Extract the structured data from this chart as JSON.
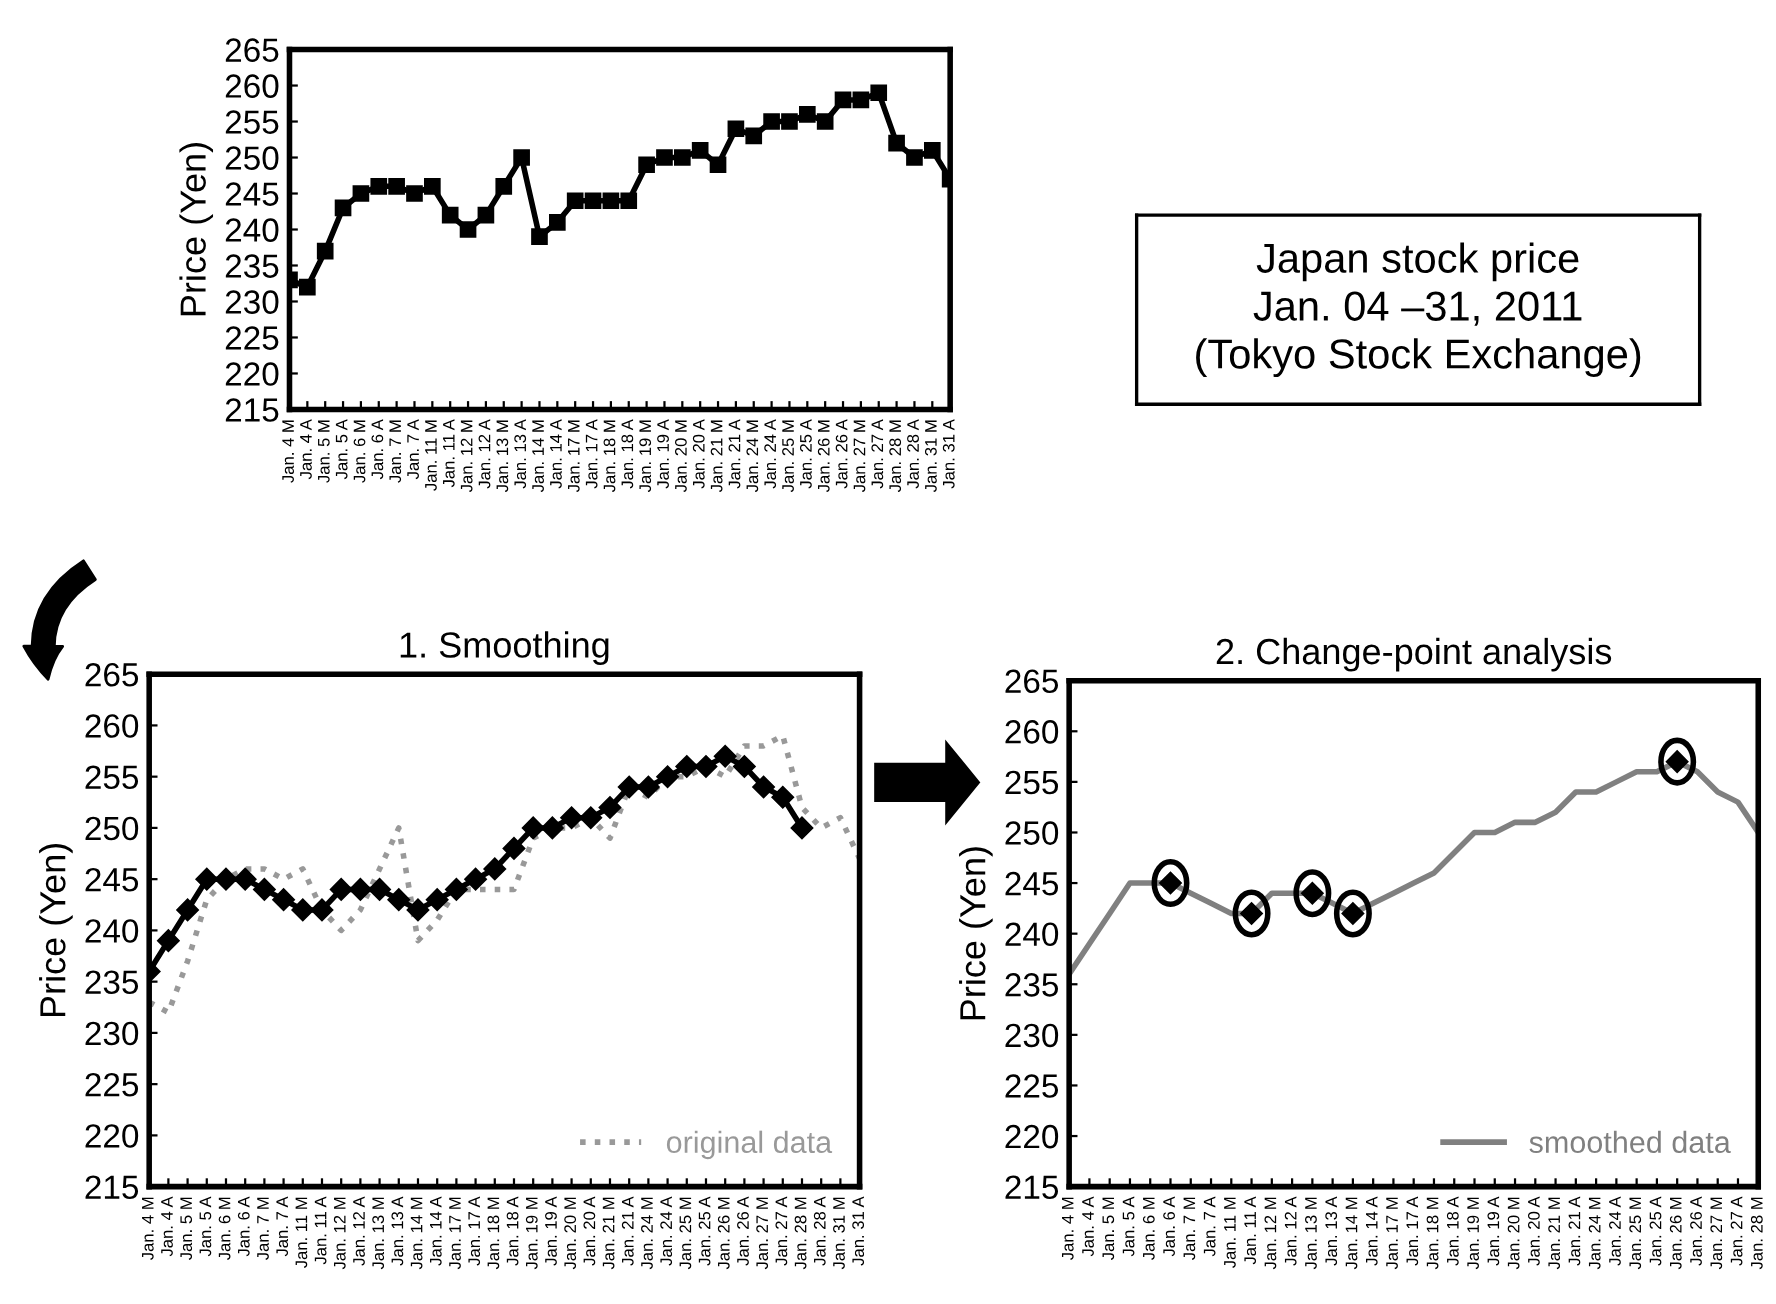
{
  "chart_data": [
    {
      "type": "line",
      "ylabel": "Price (Yen)",
      "categories": [
        "Jan. 4 M",
        "Jan. 4 A",
        "Jan. 5 M",
        "Jan. 5 A",
        "Jan. 6 M",
        "Jan. 6 A",
        "Jan. 7 M",
        "Jan. 7 A",
        "Jan. 11 M",
        "Jan. 11 A",
        "Jan. 12 M",
        "Jan. 12 A",
        "Jan. 13 M",
        "Jan. 13 A",
        "Jan. 14 M",
        "Jan. 14 A",
        "Jan. 17 M",
        "Jan. 17 A",
        "Jan. 18 M",
        "Jan. 18 A",
        "Jan. 19 M",
        "Jan. 19 A",
        "Jan. 20 M",
        "Jan. 20 A",
        "Jan. 21 M",
        "Jan. 21 A",
        "Jan. 24 M",
        "Jan. 24 A",
        "Jan. 25 M",
        "Jan. 25 A",
        "Jan. 26 M",
        "Jan. 26 A",
        "Jan. 27 M",
        "Jan. 27 A",
        "Jan. 28 M",
        "Jan. 28 A",
        "Jan. 31 M",
        "Jan. 31 A"
      ],
      "series": [
        {
          "color": "#000000",
          "marker": "square",
          "line_style": "solid",
          "values": [
            233,
            232,
            237,
            243,
            245,
            246,
            246,
            245,
            246,
            242,
            240,
            242,
            246,
            250,
            239,
            241,
            244,
            244,
            244,
            244,
            249,
            250,
            250,
            251,
            249,
            254,
            253,
            255,
            255,
            256,
            255,
            258,
            258,
            259,
            252,
            250,
            251,
            247
          ]
        }
      ],
      "ylim": [
        215,
        265
      ],
      "yticks": [
        215,
        220,
        225,
        230,
        235,
        240,
        245,
        250,
        255,
        260,
        265
      ],
      "grid": false,
      "legend": false
    },
    {
      "type": "other",
      "annotations": [
        "Japan stock price\nJan. 04 –31, 2011\n(Tokyo Stock Exchange)"
      ]
    },
    {
      "type": "line",
      "title": "1. Smoothing",
      "ylabel": "Price (Yen)",
      "categories": [
        "Jan. 4 M",
        "Jan. 4 A",
        "Jan. 5 M",
        "Jan. 5 A",
        "Jan. 6 M",
        "Jan. 6 A",
        "Jan. 7 M",
        "Jan. 7 A",
        "Jan. 11 M",
        "Jan. 11 A",
        "Jan. 12 M",
        "Jan. 12 A",
        "Jan. 13 M",
        "Jan. 13 A",
        "Jan. 14 M",
        "Jan. 14 A",
        "Jan. 17 M",
        "Jan. 17 A",
        "Jan. 18 M",
        "Jan. 18 A",
        "Jan. 19 M",
        "Jan. 19 A",
        "Jan. 20 M",
        "Jan. 20 A",
        "Jan. 21 M",
        "Jan. 21 A",
        "Jan. 24 M",
        "Jan. 24 A",
        "Jan. 25 M",
        "Jan. 25 A",
        "Jan. 26 M",
        "Jan. 26 A",
        "Jan. 27 M",
        "Jan. 27 A",
        "Jan. 28 M",
        "Jan. 28 A",
        "Jan. 31 M",
        "Jan. 31 A"
      ],
      "series": [
        {
          "name": "original data",
          "color": "#999999",
          "marker": "none",
          "line_style": "dotted",
          "values": [
            233,
            232,
            237,
            243,
            245,
            246,
            246,
            245,
            246,
            242,
            240,
            242,
            246,
            250,
            239,
            241,
            244,
            244,
            244,
            244,
            249,
            250,
            250,
            251,
            249,
            254,
            253,
            255,
            255,
            256,
            255,
            258,
            258,
            259,
            252,
            250,
            251,
            247
          ]
        },
        {
          "color": "#000000",
          "marker": "diamond",
          "line_style": "solid",
          "values": [
            236,
            239,
            242,
            245,
            245,
            245,
            244,
            243,
            242,
            242,
            244,
            244,
            244,
            243,
            242,
            243,
            244,
            245,
            246,
            248,
            250,
            250,
            251,
            251,
            252,
            254,
            254,
            255,
            256,
            256,
            257,
            256,
            254,
            253,
            250,
            null,
            null,
            null
          ]
        }
      ],
      "ylim": [
        215,
        265
      ],
      "yticks": [
        215,
        220,
        225,
        230,
        235,
        240,
        245,
        250,
        255,
        260,
        265
      ],
      "grid": false,
      "legend": "bottom right"
    },
    {
      "type": "line",
      "title": "2. Change-point analysis",
      "ylabel": "Price (Yen)",
      "categories": [
        "Jan. 4 M",
        "Jan. 4 A",
        "Jan. 5 M",
        "Jan. 5 A",
        "Jan. 6 M",
        "Jan. 6 A",
        "Jan. 7 M",
        "Jan. 7 A",
        "Jan. 11 M",
        "Jan. 11 A",
        "Jan. 12 M",
        "Jan. 12 A",
        "Jan. 13 M",
        "Jan. 13 A",
        "Jan. 14 M",
        "Jan. 14 A",
        "Jan. 17 M",
        "Jan. 17 A",
        "Jan. 18 M",
        "Jan. 18 A",
        "Jan. 19 M",
        "Jan. 19 A",
        "Jan. 20 M",
        "Jan. 20 A",
        "Jan. 21 M",
        "Jan. 21 A",
        "Jan. 24 M",
        "Jan. 24 A",
        "Jan. 25 M",
        "Jan. 25 A",
        "Jan. 26 M",
        "Jan. 26 A",
        "Jan. 27 M",
        "Jan. 27 A",
        "Jan. 28 M"
      ],
      "series": [
        {
          "name": "smoothed data",
          "color": "#808080",
          "marker": "none",
          "line_style": "solid",
          "values": [
            236,
            239,
            242,
            245,
            245,
            245,
            244,
            243,
            242,
            242,
            244,
            244,
            244,
            243,
            242,
            243,
            244,
            245,
            246,
            248,
            250,
            250,
            251,
            251,
            252,
            254,
            254,
            255,
            256,
            256,
            257,
            256,
            254,
            253,
            250
          ]
        },
        {
          "type": "scatter",
          "color": "#000000",
          "values": [
            null,
            null,
            null,
            null,
            null,
            245,
            null,
            null,
            null,
            242,
            null,
            null,
            244,
            null,
            242,
            null,
            null,
            null,
            null,
            null,
            null,
            null,
            null,
            null,
            null,
            null,
            null,
            null,
            null,
            null,
            257,
            null,
            null,
            null,
            null
          ]
        }
      ],
      "ylim": [
        215,
        265
      ],
      "yticks": [
        215,
        220,
        225,
        230,
        235,
        240,
        245,
        250,
        255,
        260,
        265
      ],
      "grid": false,
      "legend": "bottom right"
    }
  ]
}
